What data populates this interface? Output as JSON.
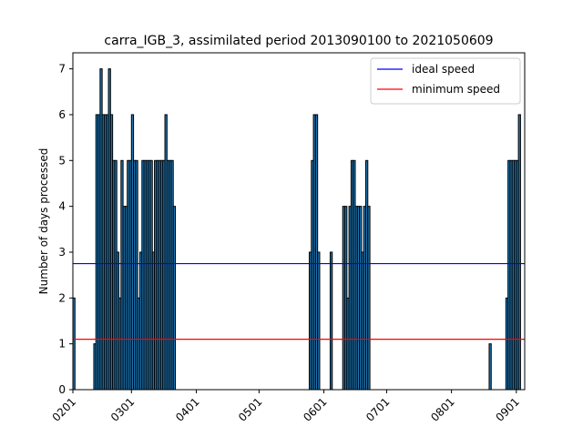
{
  "chart_data": {
    "type": "bar",
    "title": "carra_IGB_3, assimilated period 2013090100 to 2021050609",
    "xlabel": "",
    "ylabel": "Number of days processed",
    "ylim": [
      0,
      7.35
    ],
    "yticks": [
      0,
      1,
      2,
      3,
      4,
      5,
      6,
      7
    ],
    "xlim": [
      0,
      216
    ],
    "xticks": [
      {
        "pos": 0,
        "label": "0201"
      },
      {
        "pos": 28,
        "label": "0301"
      },
      {
        "pos": 59,
        "label": "0401"
      },
      {
        "pos": 89,
        "label": "0501"
      },
      {
        "pos": 120,
        "label": "0601"
      },
      {
        "pos": 150,
        "label": "0701"
      },
      {
        "pos": 181,
        "label": "0801"
      },
      {
        "pos": 212,
        "label": "0901"
      }
    ],
    "bar_color": "#1f77b4",
    "bar_edge_color": "#000000",
    "values": [
      2,
      0,
      0,
      0,
      0,
      0,
      0,
      0,
      0,
      0,
      1,
      6,
      6,
      7,
      6,
      6,
      6,
      7,
      6,
      5,
      5,
      3,
      2,
      5,
      4,
      4,
      5,
      5,
      6,
      5,
      5,
      2,
      3,
      5,
      5,
      5,
      5,
      5,
      3,
      5,
      5,
      5,
      5,
      5,
      6,
      5,
      5,
      5,
      4,
      0,
      0,
      0,
      0,
      0,
      0,
      0,
      0,
      0,
      0,
      0,
      0,
      0,
      0,
      0,
      0,
      0,
      0,
      0,
      0,
      0,
      0,
      0,
      0,
      0,
      0,
      0,
      0,
      0,
      0,
      0,
      0,
      0,
      0,
      0,
      0,
      0,
      0,
      0,
      0,
      0,
      0,
      0,
      0,
      0,
      0,
      0,
      0,
      0,
      0,
      0,
      0,
      0,
      0,
      0,
      0,
      0,
      0,
      0,
      0,
      0,
      0,
      0,
      0,
      3,
      5,
      6,
      6,
      3,
      0,
      0,
      0,
      0,
      0,
      3,
      0,
      0,
      0,
      0,
      0,
      4,
      4,
      2,
      4,
      5,
      5,
      4,
      4,
      4,
      3,
      4,
      5,
      4,
      0,
      0,
      0,
      0,
      0,
      0,
      0,
      0,
      0,
      0,
      0,
      0,
      0,
      0,
      0,
      0,
      0,
      0,
      0,
      0,
      0,
      0,
      0,
      0,
      0,
      0,
      0,
      0,
      0,
      0,
      0,
      0,
      0,
      0,
      0,
      0,
      0,
      0,
      0,
      0,
      0,
      0,
      0,
      0,
      0,
      0,
      0,
      0,
      0,
      0,
      0,
      0,
      0,
      0,
      0,
      0,
      0,
      1,
      0,
      0,
      0,
      0,
      0,
      0,
      0,
      2,
      5,
      5,
      5,
      5,
      5,
      6
    ],
    "hlines": [
      {
        "name": "ideal speed",
        "value": 2.75,
        "color": "#0000ff"
      },
      {
        "name": "minimum speed",
        "value": 1.1,
        "color": "#ff0000"
      }
    ],
    "legend_position": "top-right"
  }
}
